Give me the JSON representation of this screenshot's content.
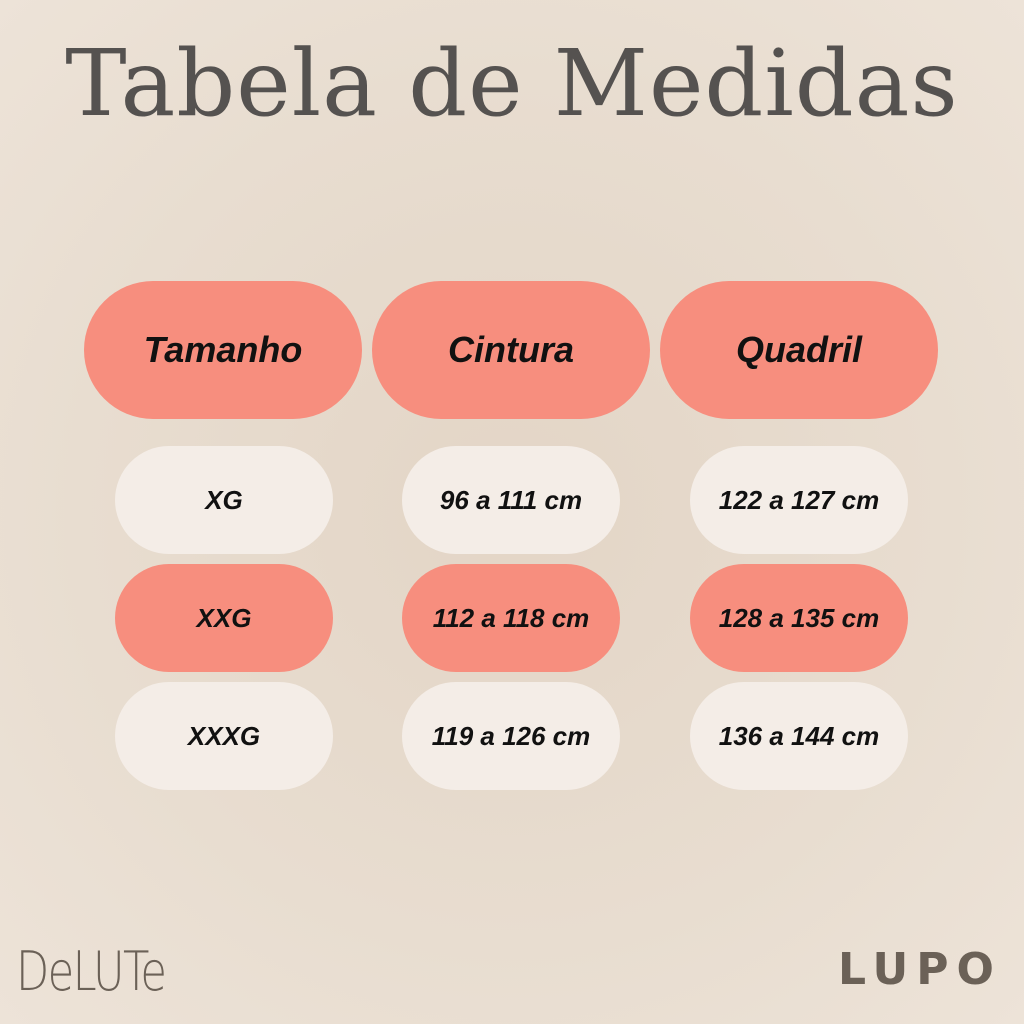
{
  "title": "Tabela de Medidas",
  "headers": [
    "Tamanho",
    "Cintura",
    "Quadril"
  ],
  "rows": [
    {
      "size": "XG",
      "waist": "96 a 111 cm",
      "hip": "122 a 127 cm",
      "highlight": false
    },
    {
      "size": "XXG",
      "waist": "112 a 118 cm",
      "hip": "128 a 135 cm",
      "highlight": true
    },
    {
      "size": "XXXG",
      "waist": "119 a 126 cm",
      "hip": "136 a 144 cm",
      "highlight": false
    }
  ],
  "logos": {
    "left": "DeLUTe",
    "right": "LUPO"
  },
  "colors": {
    "accent": "#f78e7e",
    "light": "#f4ede7",
    "background": "#e6dacd"
  }
}
